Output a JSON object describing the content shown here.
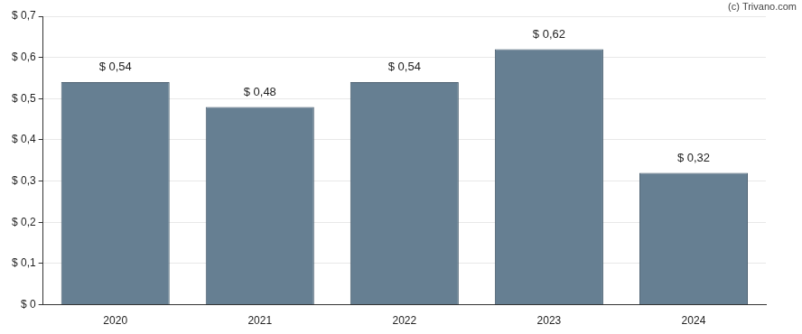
{
  "chart_data": {
    "type": "bar",
    "annotations": [
      "(c) Trivano.com"
    ],
    "categories": [
      "2020",
      "2021",
      "2022",
      "2023",
      "2024"
    ],
    "values": [
      0.54,
      0.48,
      0.54,
      0.62,
      0.32
    ],
    "value_labels": [
      "$ 0,54",
      "$ 0,48",
      "$ 0,54",
      "$ 0,62",
      "$ 0,32"
    ],
    "data_labels": true,
    "color": "#667f92",
    "ylim": [
      0,
      0.7
    ],
    "yticks": [
      {
        "value": 0,
        "label": "$ 0"
      },
      {
        "value": 0.1,
        "label": "$ 0,1"
      },
      {
        "value": 0.2,
        "label": "$ 0,2"
      },
      {
        "value": 0.3,
        "label": "$ 0,3"
      },
      {
        "value": 0.4,
        "label": "$ 0,4"
      },
      {
        "value": 0.5,
        "label": "$ 0,5"
      },
      {
        "value": 0.6,
        "label": "$ 0,6"
      },
      {
        "value": 0.7,
        "label": "$ 0,7"
      }
    ],
    "grid": true
  }
}
